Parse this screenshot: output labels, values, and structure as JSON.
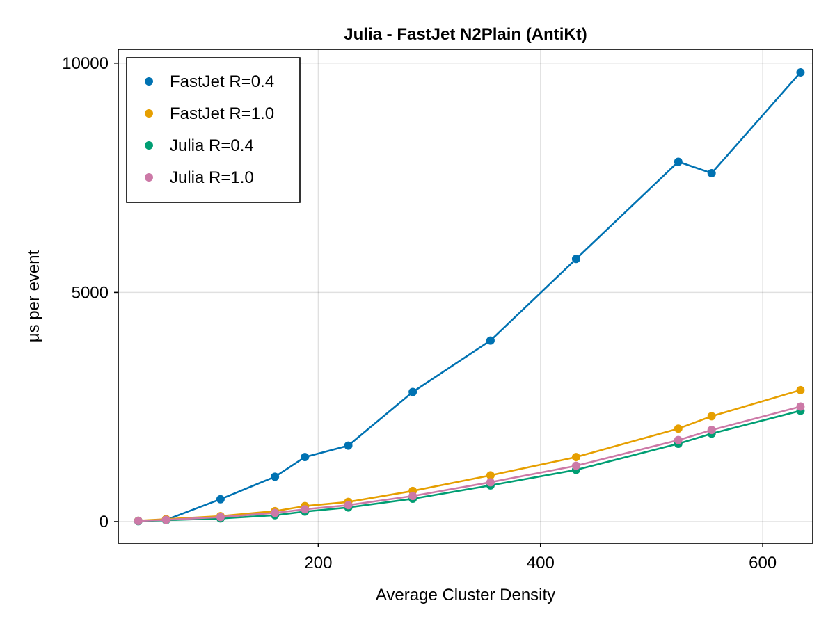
{
  "chart_data": {
    "type": "line",
    "title": "Julia - FastJet N2Plain (AntiKt)",
    "xlabel": "Average Cluster Density",
    "ylabel": "μs per event",
    "xlim": [
      20,
      645
    ],
    "ylim": [
      -470,
      10300
    ],
    "xticks": [
      200,
      400,
      600
    ],
    "yticks": [
      0,
      5000,
      10000
    ],
    "xtick_labels": [
      "200",
      "400",
      "600"
    ],
    "ytick_labels": [
      "0",
      "5000",
      "10000"
    ],
    "grid": true,
    "legend_position": "top-left",
    "x": [
      38,
      63,
      112,
      161,
      188,
      227,
      285,
      355,
      432,
      524,
      554,
      634
    ],
    "series": [
      {
        "name": "FastJet R=0.4",
        "color": "#0072B2",
        "values": [
          20,
          40,
          490,
          980,
          1410,
          1660,
          2830,
          3950,
          5730,
          7850,
          7600,
          9800
        ]
      },
      {
        "name": "FastJet R=1.0",
        "color": "#E69F00",
        "values": [
          20,
          55,
          120,
          230,
          340,
          430,
          670,
          1010,
          1410,
          2030,
          2300,
          2870
        ]
      },
      {
        "name": "Julia R=0.4",
        "color": "#009E73",
        "values": [
          10,
          30,
          70,
          140,
          220,
          310,
          500,
          790,
          1130,
          1700,
          1920,
          2420
        ]
      },
      {
        "name": "Julia R=1.0",
        "color": "#CC79A7",
        "values": [
          15,
          40,
          100,
          190,
          270,
          360,
          560,
          860,
          1220,
          1780,
          2000,
          2510
        ]
      }
    ]
  }
}
